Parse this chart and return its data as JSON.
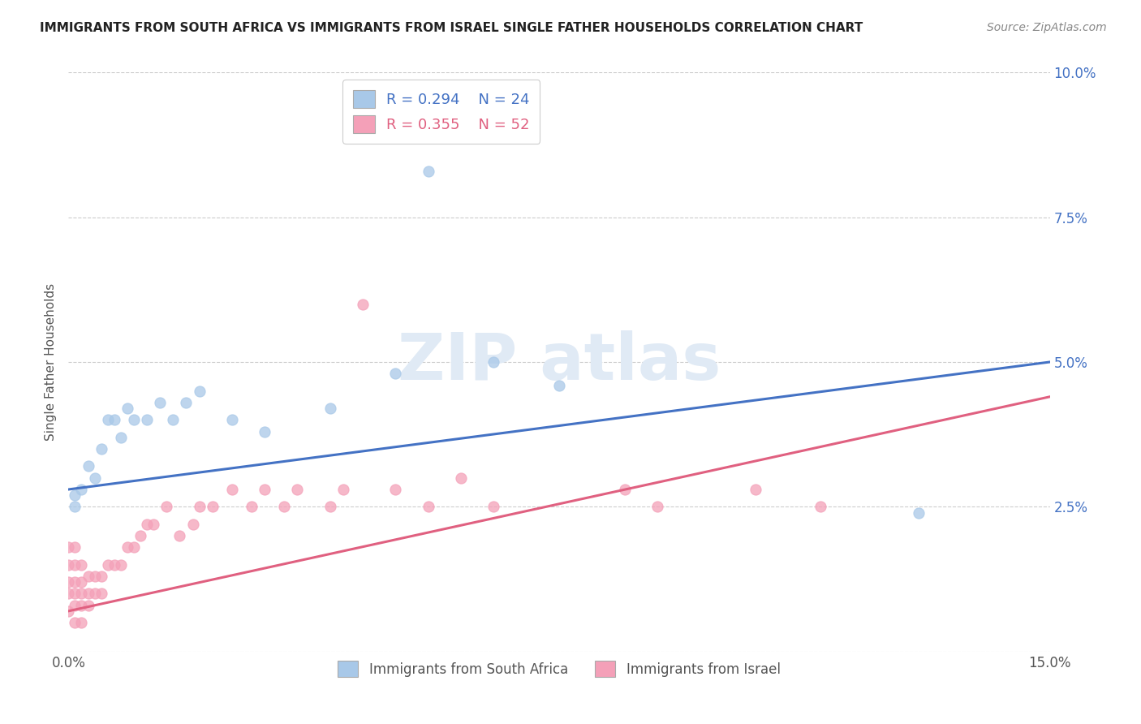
{
  "title": "IMMIGRANTS FROM SOUTH AFRICA VS IMMIGRANTS FROM ISRAEL SINGLE FATHER HOUSEHOLDS CORRELATION CHART",
  "source": "Source: ZipAtlas.com",
  "ylabel": "Single Father Households",
  "xlim": [
    0.0,
    0.15
  ],
  "ylim": [
    0.0,
    0.1
  ],
  "xticks": [
    0.0,
    0.025,
    0.05,
    0.075,
    0.1,
    0.125,
    0.15
  ],
  "yticks": [
    0.0,
    0.025,
    0.05,
    0.075,
    0.1
  ],
  "south_africa_R": 0.294,
  "south_africa_N": 24,
  "israel_R": 0.355,
  "israel_N": 52,
  "south_africa_color": "#a8c8e8",
  "israel_color": "#f4a0b8",
  "south_africa_line_color": "#4472c4",
  "israel_line_color": "#e06080",
  "background_color": "#ffffff",
  "sa_x": [
    0.001,
    0.001,
    0.002,
    0.003,
    0.004,
    0.005,
    0.006,
    0.007,
    0.008,
    0.009,
    0.01,
    0.012,
    0.014,
    0.016,
    0.018,
    0.02,
    0.025,
    0.03,
    0.04,
    0.05,
    0.055,
    0.065,
    0.075,
    0.13
  ],
  "sa_y": [
    0.025,
    0.027,
    0.028,
    0.032,
    0.03,
    0.035,
    0.04,
    0.04,
    0.037,
    0.042,
    0.04,
    0.04,
    0.043,
    0.04,
    0.043,
    0.045,
    0.04,
    0.038,
    0.042,
    0.048,
    0.083,
    0.05,
    0.046,
    0.024
  ],
  "isr_x": [
    0.0,
    0.0,
    0.0,
    0.0,
    0.0,
    0.001,
    0.001,
    0.001,
    0.001,
    0.001,
    0.001,
    0.002,
    0.002,
    0.002,
    0.002,
    0.002,
    0.003,
    0.003,
    0.003,
    0.004,
    0.004,
    0.005,
    0.005,
    0.006,
    0.007,
    0.008,
    0.009,
    0.01,
    0.011,
    0.012,
    0.013,
    0.015,
    0.017,
    0.019,
    0.02,
    0.022,
    0.025,
    0.028,
    0.03,
    0.033,
    0.035,
    0.04,
    0.042,
    0.045,
    0.05,
    0.055,
    0.06,
    0.065,
    0.085,
    0.09,
    0.105,
    0.115
  ],
  "isr_y": [
    0.007,
    0.01,
    0.012,
    0.015,
    0.018,
    0.005,
    0.008,
    0.01,
    0.012,
    0.015,
    0.018,
    0.005,
    0.008,
    0.01,
    0.012,
    0.015,
    0.008,
    0.01,
    0.013,
    0.01,
    0.013,
    0.01,
    0.013,
    0.015,
    0.015,
    0.015,
    0.018,
    0.018,
    0.02,
    0.022,
    0.022,
    0.025,
    0.02,
    0.022,
    0.025,
    0.025,
    0.028,
    0.025,
    0.028,
    0.025,
    0.028,
    0.025,
    0.028,
    0.06,
    0.028,
    0.025,
    0.03,
    0.025,
    0.028,
    0.025,
    0.028,
    0.025
  ],
  "sa_line_x0": 0.0,
  "sa_line_y0": 0.028,
  "sa_line_x1": 0.15,
  "sa_line_y1": 0.05,
  "isr_line_x0": 0.0,
  "isr_line_y0": 0.007,
  "isr_line_x1": 0.15,
  "isr_line_y1": 0.044
}
